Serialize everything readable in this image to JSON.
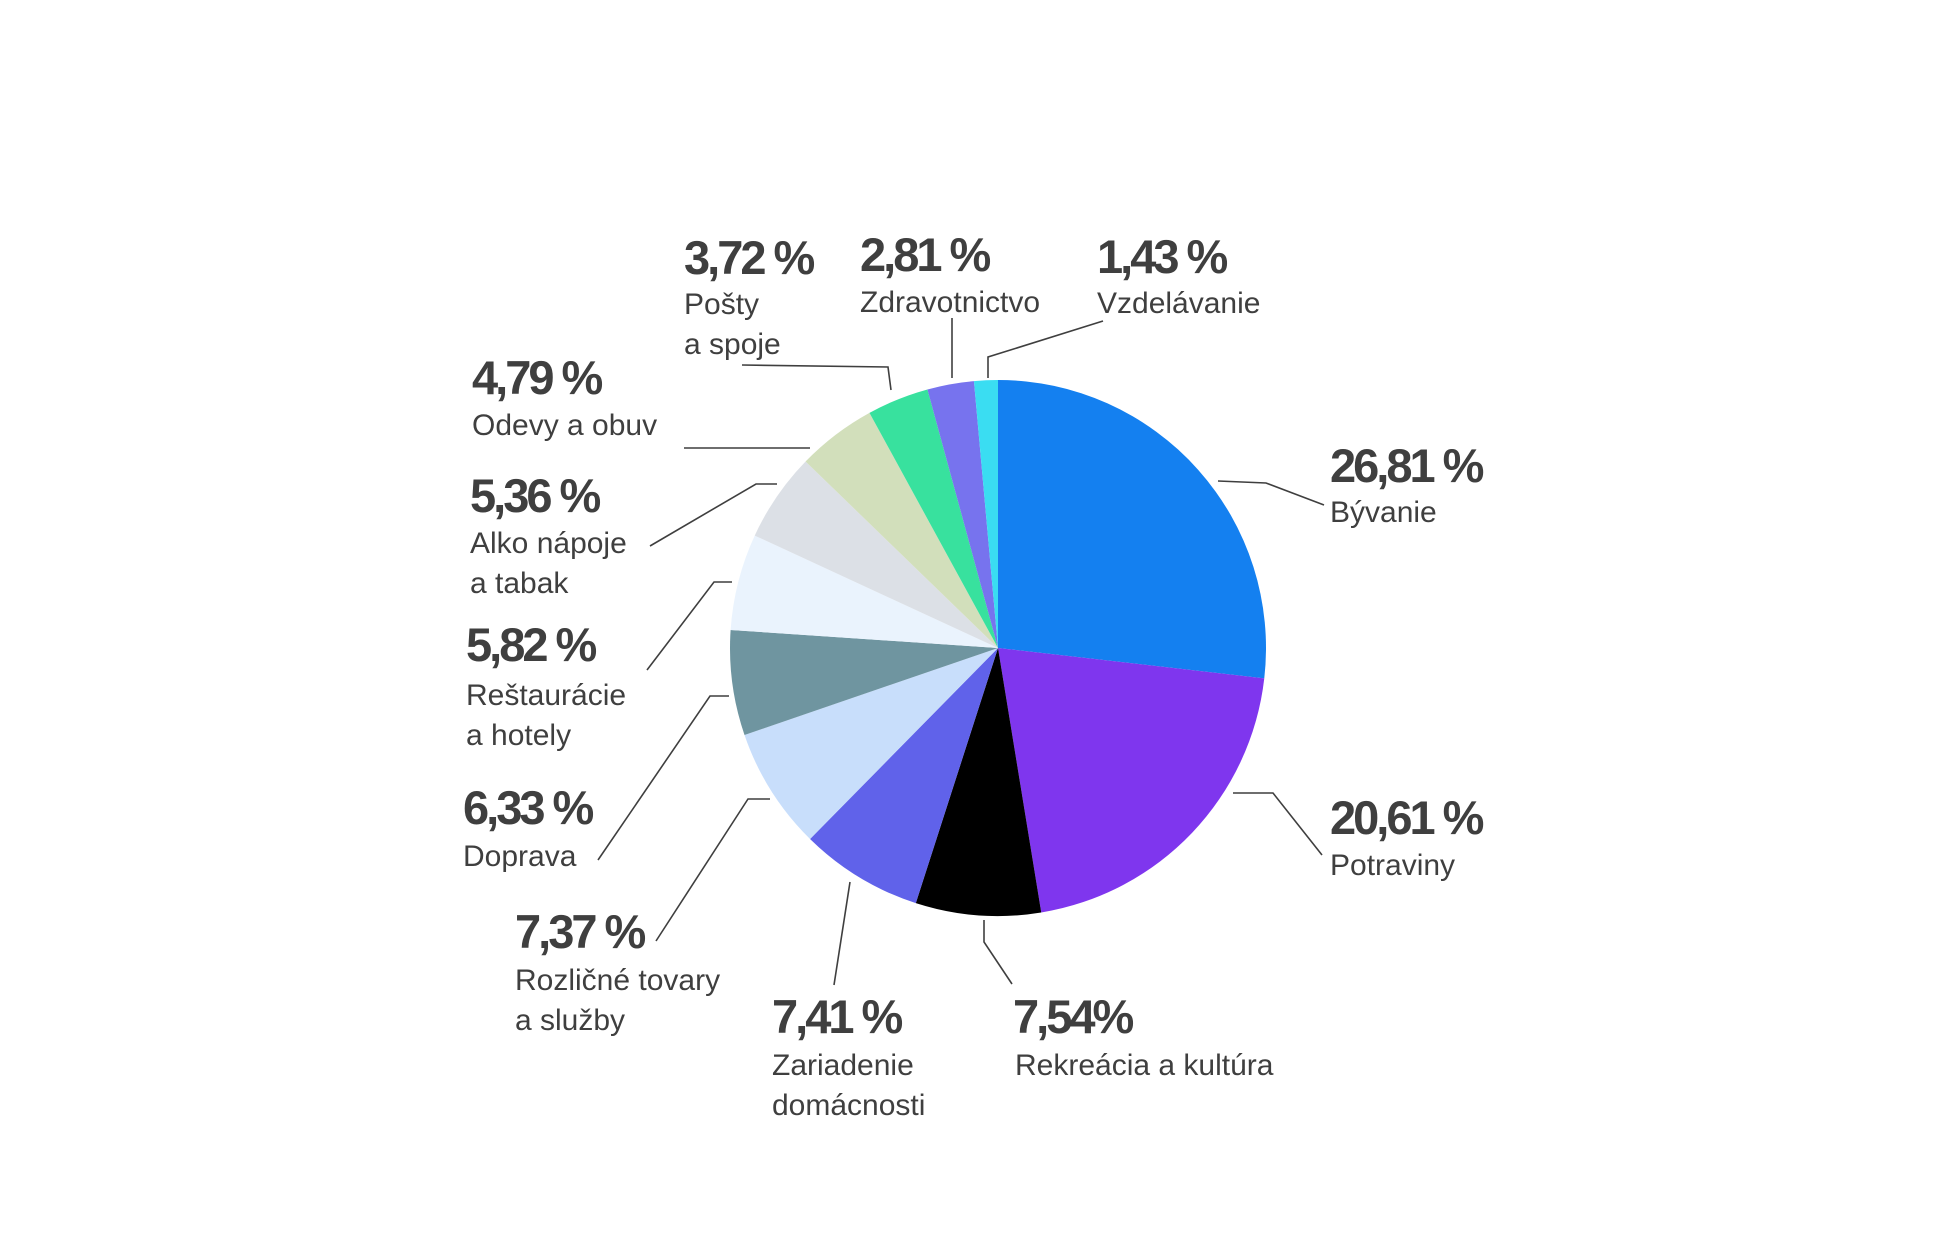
{
  "chart_data": {
    "type": "pie",
    "slices": [
      {
        "value": 26.81,
        "value_label": "26,81 %",
        "label": [
          "Bývanie"
        ],
        "color": "#1480F0"
      },
      {
        "value": 20.61,
        "value_label": "20,61 %",
        "label": [
          "Potraviny"
        ],
        "color": "#7F36EE"
      },
      {
        "value": 7.54,
        "value_label": "7,54%",
        "label": [
          "Rekreácia a kultúra"
        ],
        "color": "#000000"
      },
      {
        "value": 7.41,
        "value_label": "7,41 %",
        "label": [
          "Zariadenie",
          "domácnosti"
        ],
        "color": "#6062EA"
      },
      {
        "value": 7.37,
        "value_label": "7,37 %",
        "label": [
          "Rozličné tovary",
          "a služby"
        ],
        "color": "#C8DEFB"
      },
      {
        "value": 6.33,
        "value_label": "6,33 %",
        "label": [
          "Doprava"
        ],
        "color": "#6F95A0"
      },
      {
        "value": 5.82,
        "value_label": "5,82 %",
        "label": [
          "Reštaurácie",
          "a hotely"
        ],
        "color": "#EAF3FD"
      },
      {
        "value": 5.36,
        "value_label": "5,36 %",
        "label": [
          "Alko nápoje",
          "a tabak"
        ],
        "color": "#DCE0E6"
      },
      {
        "value": 4.79,
        "value_label": "4,79 %",
        "label": [
          "Odevy a obuv"
        ],
        "color": "#D2DFBB"
      },
      {
        "value": 3.72,
        "value_label": "3,72 %",
        "label": [
          "Pošty",
          "a spoje"
        ],
        "color": "#38E19E"
      },
      {
        "value": 2.81,
        "value_label": "2,81 %",
        "label": [
          "Zdravotnictvo"
        ],
        "color": "#7773EE"
      },
      {
        "value": 1.43,
        "value_label": "1,43 %",
        "label": [
          "Vzdelávanie"
        ],
        "color": "#3ADDF2"
      }
    ],
    "start_angle": "12 o'clock",
    "direction": "clockwise",
    "legend": "none",
    "title": ""
  }
}
